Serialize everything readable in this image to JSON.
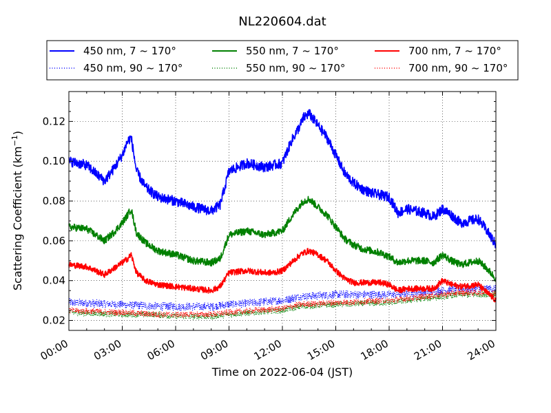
{
  "chart_data": {
    "type": "line",
    "title": "NL220604.dat",
    "xlabel": "Time on 2022-06-04 (JST)",
    "ylabel": "Scattering Coefficient (km",
    "ylabel_sup": "−1",
    "ylabel_close": ")",
    "xlim": [
      0,
      24
    ],
    "ylim": [
      0.015,
      0.135
    ],
    "x_ticks": [
      0,
      3,
      6,
      9,
      12,
      15,
      18,
      21,
      24
    ],
    "x_tick_labels": [
      "00:00",
      "03:00",
      "06:00",
      "09:00",
      "12:00",
      "15:00",
      "18:00",
      "21:00",
      "24:00"
    ],
    "y_ticks": [
      0.02,
      0.04,
      0.06,
      0.08,
      0.1,
      0.12
    ],
    "y_tick_labels": [
      "0.02",
      "0.04",
      "0.06",
      "0.08",
      "0.10",
      "0.12"
    ],
    "grid": true,
    "legend_position": "top",
    "series": [
      {
        "name": "450 nm, 7 ~ 170°",
        "color": "#0000ff",
        "style": "solid",
        "noise": 0.0025,
        "x": [
          0,
          1,
          2,
          2.5,
          3,
          3.3,
          3.5,
          3.8,
          4.3,
          5,
          6,
          7,
          8,
          8.5,
          9,
          10,
          11,
          11.5,
          12,
          12.5,
          13,
          13.2,
          13.5,
          14,
          14.5,
          15,
          15.5,
          16,
          16.5,
          17,
          17.5,
          18,
          18.5,
          19,
          20,
          20.5,
          21,
          21.5,
          22,
          23,
          23.5,
          24
        ],
        "y": [
          0.1,
          0.098,
          0.09,
          0.096,
          0.103,
          0.11,
          0.112,
          0.095,
          0.087,
          0.082,
          0.08,
          0.077,
          0.075,
          0.078,
          0.095,
          0.099,
          0.097,
          0.098,
          0.099,
          0.11,
          0.118,
          0.122,
          0.124,
          0.118,
          0.112,
          0.103,
          0.094,
          0.089,
          0.086,
          0.084,
          0.083,
          0.082,
          0.074,
          0.076,
          0.074,
          0.072,
          0.076,
          0.073,
          0.069,
          0.071,
          0.065,
          0.058
        ]
      },
      {
        "name": "450 nm, 90 ~ 170°",
        "color": "#0000ff",
        "style": "dotted",
        "noise": 0.002,
        "x": [
          0,
          3,
          5,
          6,
          8,
          9,
          12,
          13,
          15,
          18,
          21,
          22,
          24
        ],
        "y": [
          0.029,
          0.028,
          0.027,
          0.027,
          0.027,
          0.028,
          0.03,
          0.032,
          0.033,
          0.033,
          0.035,
          0.036,
          0.036
        ]
      },
      {
        "name": "550 nm, 7 ~ 170°",
        "color": "#008000",
        "style": "solid",
        "noise": 0.0018,
        "x": [
          0,
          1,
          2,
          2.5,
          3,
          3.3,
          3.5,
          3.8,
          4.3,
          5,
          6,
          7,
          8,
          8.5,
          9,
          10,
          11,
          11.5,
          12,
          12.5,
          13,
          13.2,
          13.5,
          14,
          14.5,
          15,
          15.5,
          16,
          16.5,
          17,
          17.5,
          18,
          18.5,
          19,
          20,
          20.5,
          21,
          21.5,
          22,
          23,
          23.5,
          24
        ],
        "y": [
          0.067,
          0.066,
          0.06,
          0.064,
          0.069,
          0.073,
          0.076,
          0.064,
          0.059,
          0.055,
          0.053,
          0.05,
          0.049,
          0.051,
          0.063,
          0.065,
          0.063,
          0.064,
          0.065,
          0.072,
          0.078,
          0.08,
          0.081,
          0.077,
          0.073,
          0.067,
          0.061,
          0.058,
          0.056,
          0.055,
          0.054,
          0.052,
          0.049,
          0.05,
          0.05,
          0.049,
          0.053,
          0.05,
          0.048,
          0.05,
          0.046,
          0.041
        ]
      },
      {
        "name": "550 nm, 90 ~ 170°",
        "color": "#008000",
        "style": "dotted",
        "noise": 0.0015,
        "x": [
          0,
          3,
          5,
          6,
          8,
          9,
          12,
          13,
          15,
          18,
          21,
          22,
          24
        ],
        "y": [
          0.024,
          0.023,
          0.023,
          0.022,
          0.022,
          0.023,
          0.025,
          0.027,
          0.028,
          0.029,
          0.032,
          0.033,
          0.033
        ]
      },
      {
        "name": "700 nm, 7 ~ 170°",
        "color": "#ff0000",
        "style": "solid",
        "noise": 0.0015,
        "x": [
          0,
          1,
          2,
          2.5,
          3,
          3.3,
          3.5,
          3.8,
          4.3,
          5,
          6,
          7,
          8,
          8.5,
          9,
          10,
          11,
          11.5,
          12,
          12.5,
          13,
          13.2,
          13.5,
          14,
          14.5,
          15,
          15.5,
          16,
          16.5,
          17,
          17.5,
          18,
          18.5,
          19,
          20,
          20.5,
          21,
          21.5,
          22,
          23,
          23.5,
          24
        ],
        "y": [
          0.048,
          0.047,
          0.043,
          0.046,
          0.049,
          0.051,
          0.053,
          0.044,
          0.04,
          0.038,
          0.037,
          0.036,
          0.035,
          0.037,
          0.044,
          0.045,
          0.044,
          0.044,
          0.045,
          0.049,
          0.053,
          0.054,
          0.055,
          0.053,
          0.05,
          0.045,
          0.041,
          0.039,
          0.039,
          0.039,
          0.039,
          0.038,
          0.035,
          0.036,
          0.036,
          0.036,
          0.04,
          0.038,
          0.037,
          0.038,
          0.034,
          0.03
        ]
      },
      {
        "name": "700 nm, 90 ~ 170°",
        "color": "#ff0000",
        "style": "dotted",
        "noise": 0.0015,
        "x": [
          0,
          3,
          5,
          6,
          8,
          9,
          12,
          13,
          15,
          18,
          21,
          22,
          24
        ],
        "y": [
          0.025,
          0.024,
          0.023,
          0.023,
          0.023,
          0.024,
          0.026,
          0.028,
          0.029,
          0.03,
          0.033,
          0.034,
          0.034
        ]
      }
    ]
  }
}
